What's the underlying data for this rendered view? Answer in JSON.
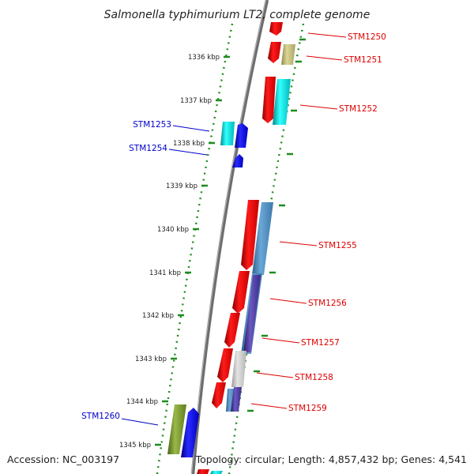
{
  "title": "Salmonella typhimurium LT2, complete genome",
  "footer": {
    "accession": "Accession: NC_003197",
    "summary": "Topology: circular; Length: 4,857,432 bp; Genes: 4,541"
  },
  "ticks": [
    "1336 kbp",
    "1337 kbp",
    "1338 kbp",
    "1339 kbp",
    "1340 kbp",
    "1341 kbp",
    "1342 kbp",
    "1343 kbp",
    "1344 kbp",
    "1345 kbp"
  ],
  "genes": [
    {
      "name": "STM1250",
      "color": "#dd0000"
    },
    {
      "name": "STM1251",
      "color": "#dd0000"
    },
    {
      "name": "STM1252",
      "color": "#dd0000"
    },
    {
      "name": "STM1253",
      "color": "#0000cc"
    },
    {
      "name": "STM1254",
      "color": "#0000cc"
    },
    {
      "name": "STM1255",
      "color": "#dd0000"
    },
    {
      "name": "STM1256",
      "color": "#dd0000"
    },
    {
      "name": "STM1257",
      "color": "#dd0000"
    },
    {
      "name": "STM1258",
      "color": "#dd0000"
    },
    {
      "name": "STM1259",
      "color": "#dd0000"
    },
    {
      "name": "STM1260",
      "color": "#0000cc"
    }
  ]
}
